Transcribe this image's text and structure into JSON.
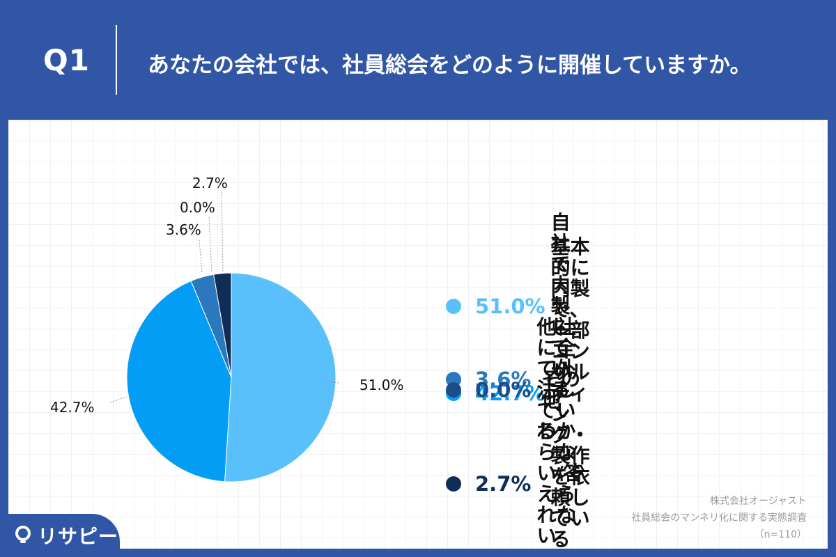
{
  "header": {
    "question_number": "Q1",
    "question_text": "あなたの会社では、社員総会をどのように開催していますか。"
  },
  "chart_data": {
    "type": "pie",
    "slices": [
      {
        "label": "自社で内製している",
        "value": 51.0,
        "display": "51.0%",
        "color": "#5ac0fb"
      },
      {
        "label": "基本的に内製で、\n一部コンサルティング・\n製作を依頼している",
        "value": 42.7,
        "display": "42.7%",
        "color": "#039df6"
      },
      {
        "label": "他社に全て外注している",
        "value": 3.6,
        "display": "3.6%",
        "color": "#2a78bd"
      },
      {
        "label": "その他",
        "value": 0.0,
        "display": "0.0%",
        "color": "#1c4d86"
      },
      {
        "label": "わからない/答えられない",
        "value": 2.7,
        "display": "2.7%",
        "color": "#0f2d55"
      }
    ],
    "legend_placement": "right",
    "legend_value_colors": [
      "#5ac0fb",
      "#039df6",
      "#2a78bd",
      "#1c4d86",
      "#0f2d55"
    ]
  },
  "branding": {
    "logo_text": "リサピー"
  },
  "source": {
    "company": "株式会社オージャスト",
    "survey": "社員総会のマンネリ化に関する実態調査",
    "sample": "（n=110）"
  }
}
